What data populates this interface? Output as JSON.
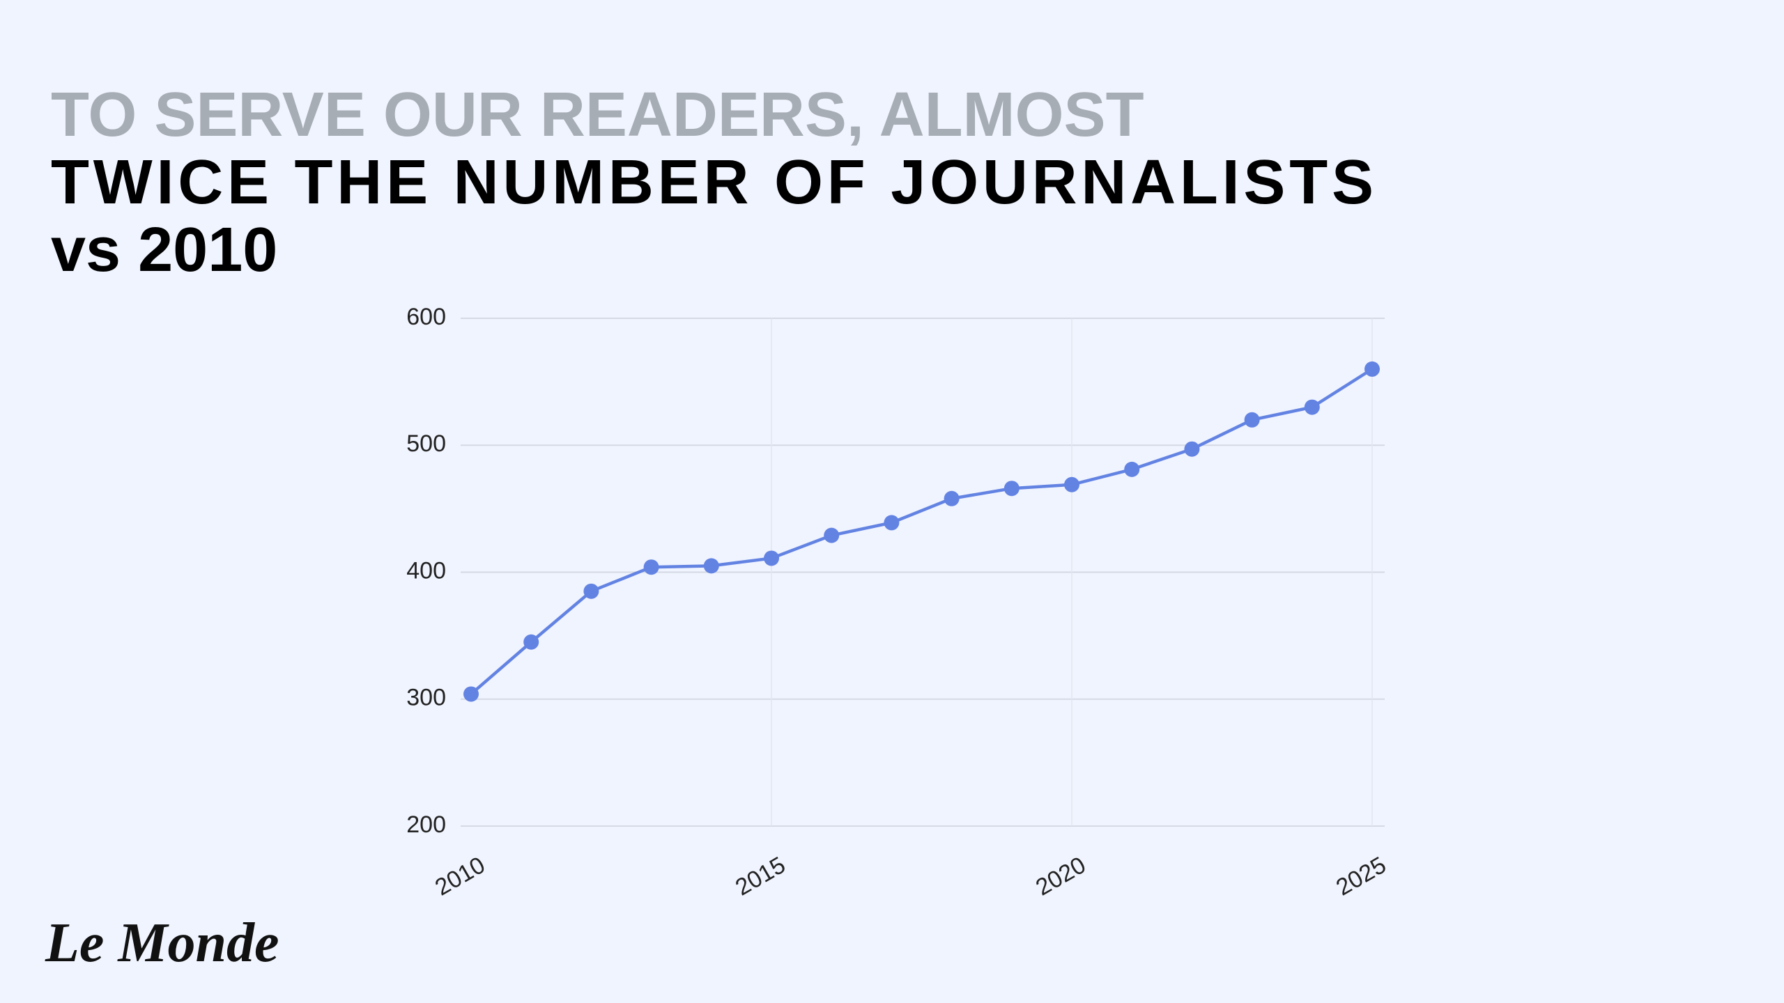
{
  "chart_data": {
    "type": "line",
    "title_lines": [
      "TO SERVE OUR READERS, ALMOST",
      "TWICE THE NUMBER OF JOURNALISTS",
      "vs 2010"
    ],
    "x": [
      2010,
      2011,
      2012,
      2013,
      2014,
      2015,
      2016,
      2017,
      2018,
      2019,
      2020,
      2021,
      2022,
      2023,
      2024,
      2025
    ],
    "values": [
      304,
      345,
      385,
      404,
      405,
      411,
      429,
      439,
      458,
      466,
      469,
      481,
      497,
      520,
      530,
      560
    ],
    "color": "#6383e3",
    "xlim": [
      2010,
      2025
    ],
    "xticks": [
      2010,
      2015,
      2020,
      2025
    ],
    "ylim": [
      200,
      600
    ],
    "yticks": [
      200,
      300,
      400,
      500,
      600
    ],
    "grid": true
  },
  "logo": "Le Monde"
}
